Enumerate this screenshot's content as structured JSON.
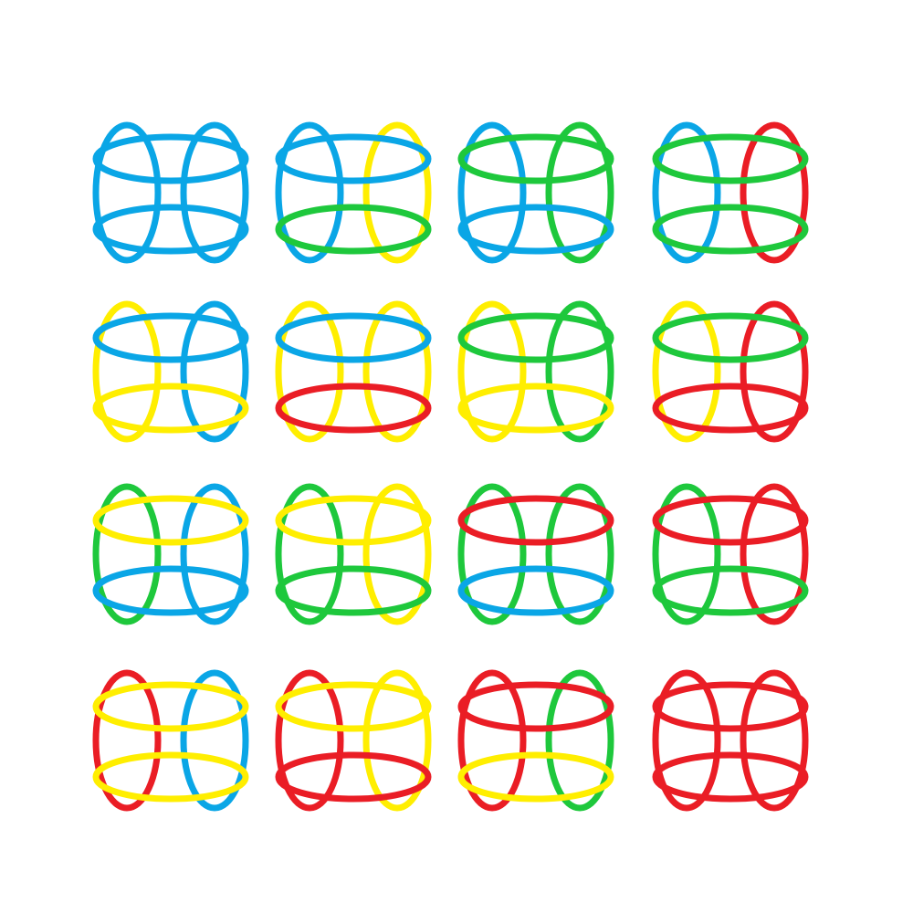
{
  "palette": {
    "blue": "#0aa6e6",
    "yellow": "#ffee00",
    "green": "#1ec83c",
    "red": "#ea1d25"
  },
  "grid": {
    "rows": 4,
    "cols": 4,
    "shape": "four-ring-cage",
    "ring_parts": [
      "left-ring",
      "right-ring",
      "top-ring",
      "bottom-ring"
    ]
  },
  "figures": [
    {
      "id": "r1c1",
      "left": "blue",
      "right": "blue",
      "top": "blue",
      "bottom": "blue"
    },
    {
      "id": "r1c2",
      "left": "blue",
      "right": "yellow",
      "top": "blue",
      "bottom": "green"
    },
    {
      "id": "r1c3",
      "left": "blue",
      "right": "green",
      "top": "green",
      "bottom": "blue"
    },
    {
      "id": "r1c4",
      "left": "blue",
      "right": "red",
      "top": "green",
      "bottom": "green"
    },
    {
      "id": "r2c1",
      "left": "yellow",
      "right": "blue",
      "top": "blue",
      "bottom": "yellow"
    },
    {
      "id": "r2c2",
      "left": "yellow",
      "right": "yellow",
      "top": "blue",
      "bottom": "red"
    },
    {
      "id": "r2c3",
      "left": "yellow",
      "right": "green",
      "top": "green",
      "bottom": "yellow"
    },
    {
      "id": "r2c4",
      "left": "yellow",
      "right": "red",
      "top": "green",
      "bottom": "red"
    },
    {
      "id": "r3c1",
      "left": "green",
      "right": "blue",
      "top": "yellow",
      "bottom": "blue"
    },
    {
      "id": "r3c2",
      "left": "green",
      "right": "yellow",
      "top": "yellow",
      "bottom": "green"
    },
    {
      "id": "r3c3",
      "left": "green",
      "right": "green",
      "top": "red",
      "bottom": "blue"
    },
    {
      "id": "r3c4",
      "left": "green",
      "right": "red",
      "top": "red",
      "bottom": "green"
    },
    {
      "id": "r4c1",
      "left": "red",
      "right": "blue",
      "top": "yellow",
      "bottom": "yellow"
    },
    {
      "id": "r4c2",
      "left": "red",
      "right": "yellow",
      "top": "yellow",
      "bottom": "red"
    },
    {
      "id": "r4c3",
      "left": "red",
      "right": "green",
      "top": "red",
      "bottom": "yellow"
    },
    {
      "id": "r4c4",
      "left": "red",
      "right": "red",
      "top": "red",
      "bottom": "red"
    }
  ]
}
